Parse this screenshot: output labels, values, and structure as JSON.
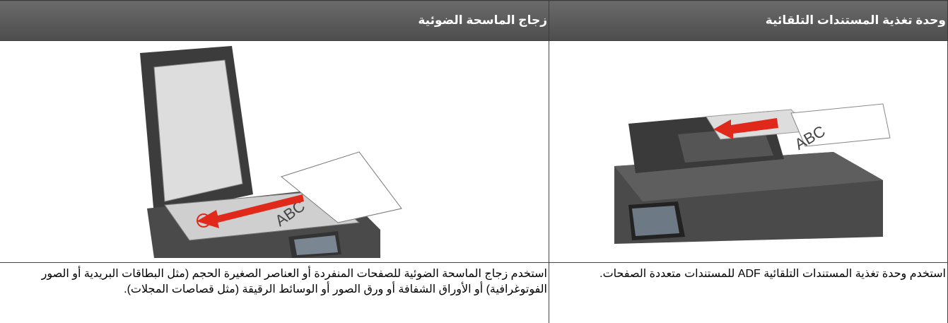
{
  "table": {
    "headers": [
      "وحدة تغذية المستندات التلقائية",
      "زجاج الماسحة الضوئية"
    ],
    "rows": [
      [
        "استخدم وحدة تغذية المستندات التلقائية ADF للمستندات متعددة الصفحات.",
        "استخدم زجاج الماسحة الضوئية للصفحات المنفردة أو العناصر الصغيرة الحجم (مثل البطاقات البريدية أو الصور الفوتوغرافية) أو الأوراق الشفافة أو ورق الصور أو الوسائط الرقيقة (مثل قصاصات المجلات)."
      ]
    ]
  }
}
